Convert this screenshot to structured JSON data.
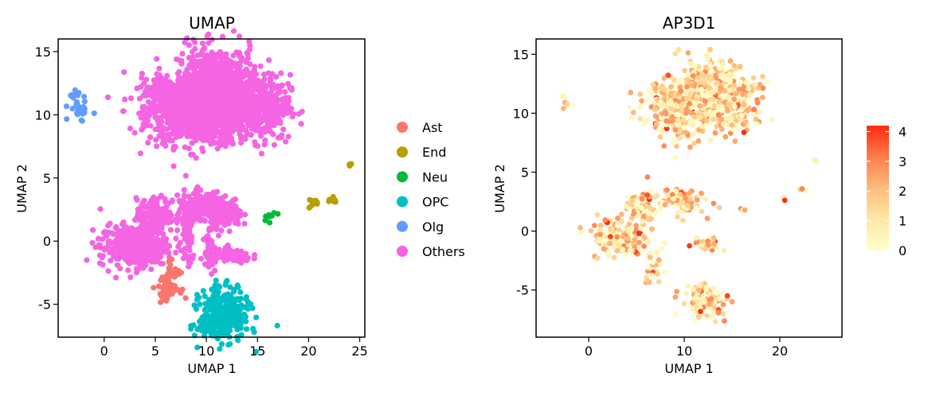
{
  "chart_data": [
    {
      "type": "scatter",
      "title": "UMAP",
      "xlabel": "UMAP 1",
      "ylabel": "UMAP 2",
      "xlim": [
        -4.5,
        25.5
      ],
      "ylim": [
        -7.6,
        16.0
      ],
      "xticks": [
        0,
        5,
        10,
        15,
        20,
        25
      ],
      "yticks": [
        -5,
        0,
        5,
        10,
        15
      ],
      "ytick_labels": [
        "-5",
        "0",
        "5",
        "10",
        "15"
      ],
      "legend_position": "right",
      "series": [
        {
          "name": "Ast",
          "color": "#F8766D",
          "clusters": [
            [
              6.3,
              -3.6,
              0.7,
              0.7,
              60
            ],
            [
              6.6,
              -2.0,
              0.4,
              1.0,
              12
            ]
          ]
        },
        {
          "name": "End",
          "color": "#B79F00",
          "clusters": [
            [
              24.0,
              6.1,
              0.2,
              0.15,
              5
            ],
            [
              20.6,
              2.9,
              0.4,
              0.25,
              8
            ],
            [
              22.4,
              3.3,
              0.4,
              0.2,
              8
            ]
          ]
        },
        {
          "name": "Neu",
          "color": "#00BA38",
          "clusters": [
            [
              16.2,
              1.9,
              0.45,
              0.25,
              10
            ]
          ]
        },
        {
          "name": "OPC",
          "color": "#00BFC4",
          "clusters": [
            [
              11.8,
              -5.8,
              1.6,
              1.3,
              320
            ],
            [
              10.6,
              -6.8,
              1.2,
              0.5,
              60
            ],
            [
              11.1,
              -3.8,
              0.4,
              0.9,
              15
            ]
          ]
        },
        {
          "name": "Olg",
          "color": "#619CFF",
          "clusters": [
            [
              -2.4,
              10.4,
              0.7,
              0.5,
              30
            ],
            [
              -3.0,
              11.6,
              0.4,
              0.3,
              8
            ]
          ]
        },
        {
          "name": "Others",
          "color": "#F564E3",
          "clusters": [
            [
              9.5,
              10.0,
              3.5,
              1.6,
              900
            ],
            [
              11.0,
              12.7,
              2.6,
              1.8,
              520
            ],
            [
              15.5,
              10.6,
              1.8,
              1.7,
              320
            ],
            [
              6.0,
              11.8,
              1.6,
              1.0,
              150
            ],
            [
              2.9,
              -0.4,
              2.2,
              1.1,
              420
            ],
            [
              5.0,
              2.0,
              1.2,
              0.9,
              170
            ],
            [
              9.7,
              2.8,
              1.7,
              0.8,
              220
            ],
            [
              12.0,
              2.0,
              1.0,
              0.6,
              120
            ],
            [
              12.5,
              -1.2,
              1.3,
              0.35,
              110
            ],
            [
              8.2,
              0.2,
              0.4,
              1.4,
              50
            ],
            [
              10.3,
              -0.2,
              0.4,
              1.4,
              50
            ]
          ]
        }
      ]
    },
    {
      "type": "scatter",
      "title": "AP3D1",
      "xlabel": "UMAP 1",
      "ylabel": "UMAP 2",
      "xlim": [
        -5.5,
        26.5
      ],
      "ylim": [
        -9.0,
        16.3
      ],
      "xticks": [
        0,
        10,
        20
      ],
      "yticks": [
        -5,
        0,
        5,
        10,
        15
      ],
      "ytick_labels": [
        "-5",
        "0",
        "5",
        "10",
        "15"
      ],
      "color_scale": {
        "low": "#FFFFCC",
        "high": "#FF2A0A",
        "min": 0,
        "max": 4.2,
        "ticks": [
          0,
          1,
          2,
          3,
          4
        ],
        "tick_labels": [
          "0",
          "1",
          "2",
          "3",
          "4"
        ]
      },
      "legend_position": "right",
      "clusters": [
        [
          10.5,
          10.4,
          3.2,
          1.7,
          380
        ],
        [
          12.0,
          12.4,
          2.3,
          1.6,
          180
        ],
        [
          15.8,
          10.7,
          1.6,
          1.6,
          130
        ],
        [
          3.3,
          -0.5,
          2.1,
          1.0,
          180
        ],
        [
          5.5,
          2.0,
          1.0,
          0.9,
          70
        ],
        [
          9.7,
          2.6,
          1.6,
          0.8,
          90
        ],
        [
          12.2,
          -1.1,
          1.1,
          0.35,
          40
        ],
        [
          6.5,
          -3.0,
          0.6,
          1.2,
          25
        ],
        [
          12.3,
          -5.8,
          1.4,
          1.0,
          110
        ],
        [
          -2.6,
          10.7,
          0.5,
          0.6,
          6
        ],
        [
          16.2,
          1.9,
          0.3,
          0.15,
          4
        ],
        [
          20.6,
          2.9,
          0.3,
          0.2,
          3
        ],
        [
          22.4,
          3.3,
          0.3,
          0.2,
          3
        ],
        [
          23.8,
          6.1,
          0.15,
          0.1,
          2
        ]
      ]
    }
  ]
}
